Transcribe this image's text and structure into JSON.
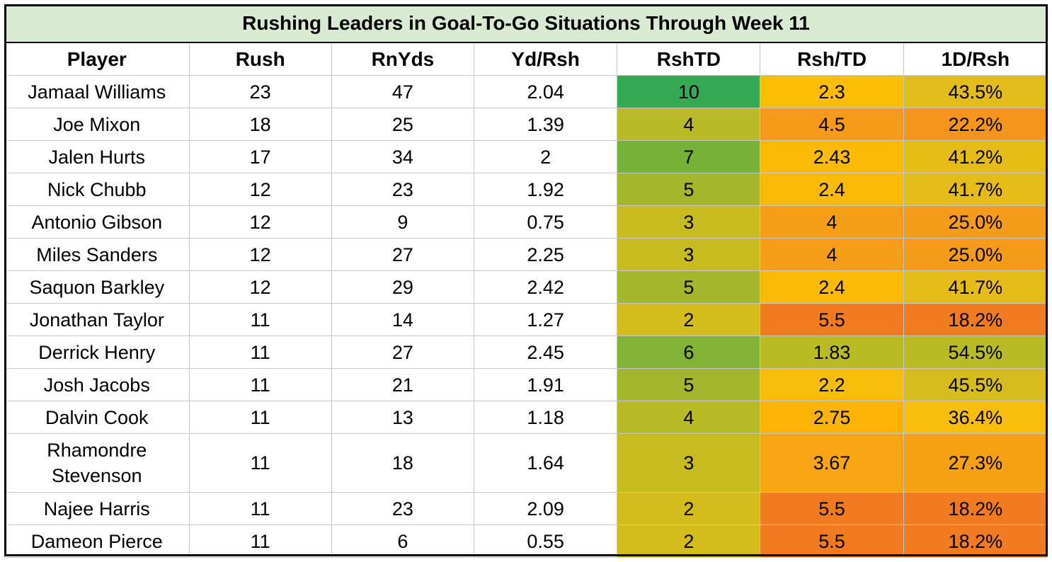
{
  "chart_data": {
    "type": "table",
    "title": "Rushing Leaders in Goal-To-Go Situations Through Week 11",
    "columns": [
      "Player",
      "Rush",
      "RnYds",
      "Yd/Rsh",
      "RshTD",
      "Rsh/TD",
      "1D/Rsh"
    ],
    "rows": [
      {
        "player": "Jamaal Williams",
        "rush": "23",
        "rnyds": "47",
        "ydrsh": "2.04",
        "rshtd": "10",
        "rshperTD": "2.3",
        "firstdown": "43.5%",
        "c_td": "#34a853",
        "c_rtd": "#fbbc04",
        "c_1d": "#e2bc18"
      },
      {
        "player": "Joe Mixon",
        "rush": "18",
        "rnyds": "25",
        "ydrsh": "1.39",
        "rshtd": "4",
        "rshperTD": "4.5",
        "firstdown": "22.2%",
        "c_td": "#b8bb25",
        "c_rtd": "#f69a1a",
        "c_1d": "#f5951c"
      },
      {
        "player": "Jalen Hurts",
        "rush": "17",
        "rnyds": "34",
        "ydrsh": "2",
        "rshtd": "7",
        "rshperTD": "2.43",
        "firstdown": "41.2%",
        "c_td": "#76b13a",
        "c_rtd": "#fbbb05",
        "c_1d": "#e5bb16"
      },
      {
        "player": "Nick Chubb",
        "rush": "12",
        "rnyds": "23",
        "ydrsh": "1.92",
        "rshtd": "5",
        "rshperTD": "2.4",
        "firstdown": "41.7%",
        "c_td": "#a2b72c",
        "c_rtd": "#fbbb05",
        "c_1d": "#e4bb17"
      },
      {
        "player": "Antonio Gibson",
        "rush": "12",
        "rnyds": "9",
        "ydrsh": "0.75",
        "rshtd": "3",
        "rshperTD": "4",
        "firstdown": "25.0%",
        "c_td": "#c8bb1f",
        "c_rtd": "#f79e19",
        "c_1d": "#f59b1a"
      },
      {
        "player": "Miles Sanders",
        "rush": "12",
        "rnyds": "27",
        "ydrsh": "2.25",
        "rshtd": "3",
        "rshperTD": "4",
        "firstdown": "25.0%",
        "c_td": "#c8bb1f",
        "c_rtd": "#f79e19",
        "c_1d": "#f59b1a"
      },
      {
        "player": "Saquon Barkley",
        "rush": "12",
        "rnyds": "29",
        "ydrsh": "2.42",
        "rshtd": "5",
        "rshperTD": "2.4",
        "firstdown": "41.7%",
        "c_td": "#a2b72c",
        "c_rtd": "#fbbb05",
        "c_1d": "#e4bb17"
      },
      {
        "player": "Jonathan Taylor",
        "rush": "11",
        "rnyds": "14",
        "ydrsh": "1.27",
        "rshtd": "2",
        "rshperTD": "5.5",
        "firstdown": "18.2%",
        "c_td": "#d4bc1c",
        "c_rtd": "#f07b20",
        "c_1d": "#f07b20"
      },
      {
        "player": "Derrick Henry",
        "rush": "11",
        "rnyds": "27",
        "ydrsh": "2.45",
        "rshtd": "6",
        "rshperTD": "1.83",
        "firstdown": "54.5%",
        "c_td": "#82b236",
        "c_rtd": "#b9bb25",
        "c_1d": "#b9bb25"
      },
      {
        "player": "Josh Jacobs",
        "rush": "11",
        "rnyds": "21",
        "ydrsh": "1.91",
        "rshtd": "5",
        "rshperTD": "2.2",
        "firstdown": "45.5%",
        "c_td": "#a2b72c",
        "c_rtd": "#f6bd0b",
        "c_1d": "#d6bc1c"
      },
      {
        "player": "Dalvin Cook",
        "rush": "11",
        "rnyds": "13",
        "ydrsh": "1.18",
        "rshtd": "4",
        "rshperTD": "2.75",
        "firstdown": "36.4%",
        "c_td": "#b8bb25",
        "c_rtd": "#fbb306",
        "c_1d": "#f7bd0b"
      },
      {
        "player": "Rhamondre Stevenson",
        "rush": "11",
        "rnyds": "18",
        "ydrsh": "1.64",
        "rshtd": "3",
        "rshperTD": "3.67",
        "firstdown": "27.3%",
        "c_td": "#c8bb1f",
        "c_rtd": "#f9a514",
        "c_1d": "#f6a114"
      },
      {
        "player": "Najee Harris",
        "rush": "11",
        "rnyds": "23",
        "ydrsh": "2.09",
        "rshtd": "2",
        "rshperTD": "5.5",
        "firstdown": "18.2%",
        "c_td": "#d4bc1c",
        "c_rtd": "#f07b20",
        "c_1d": "#f07b20"
      },
      {
        "player": "Dameon Pierce",
        "rush": "11",
        "rnyds": "6",
        "ydrsh": "0.55",
        "rshtd": "2",
        "rshperTD": "5.5",
        "firstdown": "18.2%",
        "c_td": "#d4bc1c",
        "c_rtd": "#f07b20",
        "c_1d": "#f07b20"
      }
    ]
  }
}
